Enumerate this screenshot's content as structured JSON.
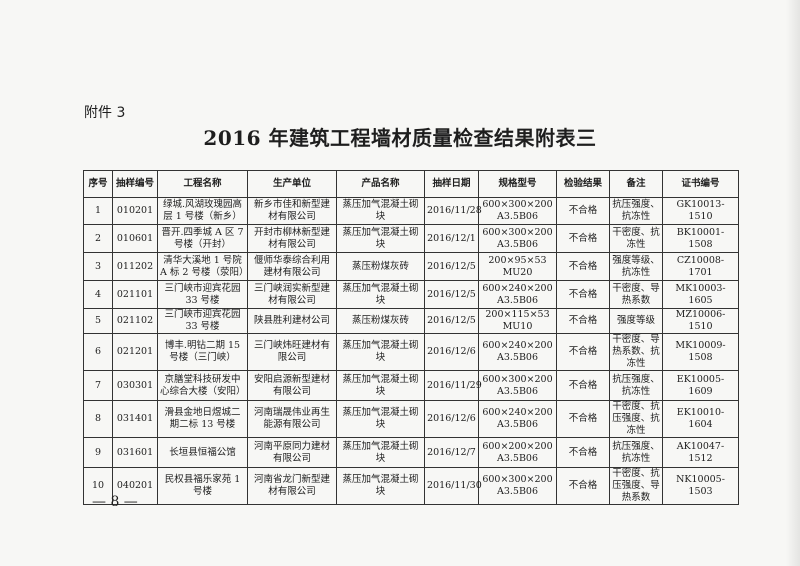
{
  "attachment_label": "附件 3",
  "title": "2016 年建筑工程墙材质量检查结果附表三",
  "columns": [
    "序号",
    "抽样编号",
    "工程名称",
    "生产单位",
    "产品名称",
    "抽样日期",
    "规格型号",
    "检验结果",
    "备注",
    "证书编号"
  ],
  "rows": [
    [
      "1",
      "010201",
      "绿城.风湖玫瑰园高层 1 号楼（新乡）",
      "新乡市佳和新型建材有限公司",
      "蒸压加气混凝土砌块",
      "2016/11/28",
      "600×300×200 A3.5B06",
      "不合格",
      "抗压强度、抗冻性",
      "GK10013-1510"
    ],
    [
      "2",
      "010601",
      "晋开.四季城 A 区 7 号楼（开封）",
      "开封市柳林新型建材有限公司",
      "蒸压加气混凝土砌块",
      "2016/12/1",
      "600×300×200 A3.5B06",
      "不合格",
      "干密度、抗冻性",
      "BK10001-1508"
    ],
    [
      "3",
      "011202",
      "清华大溪地 1 号院 A 标 2 号楼（荥阳）",
      "偃师华泰综合利用建材有限公司",
      "蒸压粉煤灰砖",
      "2016/12/5",
      "200×95×53 MU20",
      "不合格",
      "强度等级、抗冻性",
      "CZ10008-1701"
    ],
    [
      "4",
      "021101",
      "三门峡市迎宾花园 33 号楼",
      "三门峡润实新型建材有限公司",
      "蒸压加气混凝土砌块",
      "2016/12/5",
      "600×240×200 A3.5B06",
      "不合格",
      "干密度、导热系数",
      "MK10003-1605"
    ],
    [
      "5",
      "021102",
      "三门峡市迎宾花园 33 号楼",
      "陕县胜利建材公司",
      "蒸压粉煤灰砖",
      "2016/12/5",
      "200×115×53 MU10",
      "不合格",
      "强度等级",
      "MZ10006-1510"
    ],
    [
      "6",
      "021201",
      "博丰.明钻二期 15 号楼（三门峡）",
      "三门峡炜旺建材有限公司",
      "蒸压加气混凝土砌块",
      "2016/12/6",
      "600×240×200 A3.5B06",
      "不合格",
      "干密度、导热系数、抗冻性",
      "MK10009-1508"
    ],
    [
      "7",
      "030301",
      "京膳堂科技研发中心综合大楼（安阳）",
      "安阳启源新型建材有限公司",
      "蒸压加气混凝土砌块",
      "2016/11/29",
      "600×300×200 A3.5B06",
      "不合格",
      "抗压强度、抗冻性",
      "EK10005-1609"
    ],
    [
      "8",
      "031401",
      "滑县金地日煜城二期二标 13 号楼",
      "河南瑞晟伟业再生能源有限公司",
      "蒸压加气混凝土砌块",
      "2016/12/6",
      "600×240×200 A3.5B06",
      "不合格",
      "干密度、抗压强度、抗冻性",
      "EK10010-1604"
    ],
    [
      "9",
      "031601",
      "长垣县恒福公馆",
      "河南平原同力建材有限公司",
      "蒸压加气混凝土砌块",
      "2016/12/7",
      "600×200×200 A3.5B06",
      "不合格",
      "抗压强度、抗冻性",
      "AK10047-1512"
    ],
    [
      "10",
      "040201",
      "民权县福乐家苑 1 号楼",
      "河南省龙门新型建材有限公司",
      "蒸压加气混凝土砌块",
      "2016/11/30",
      "600×300×200 A3.5B06",
      "不合格",
      "干密度、抗压强度、导热系数",
      "NK10005-1503"
    ]
  ],
  "page_number": "— 8 —"
}
